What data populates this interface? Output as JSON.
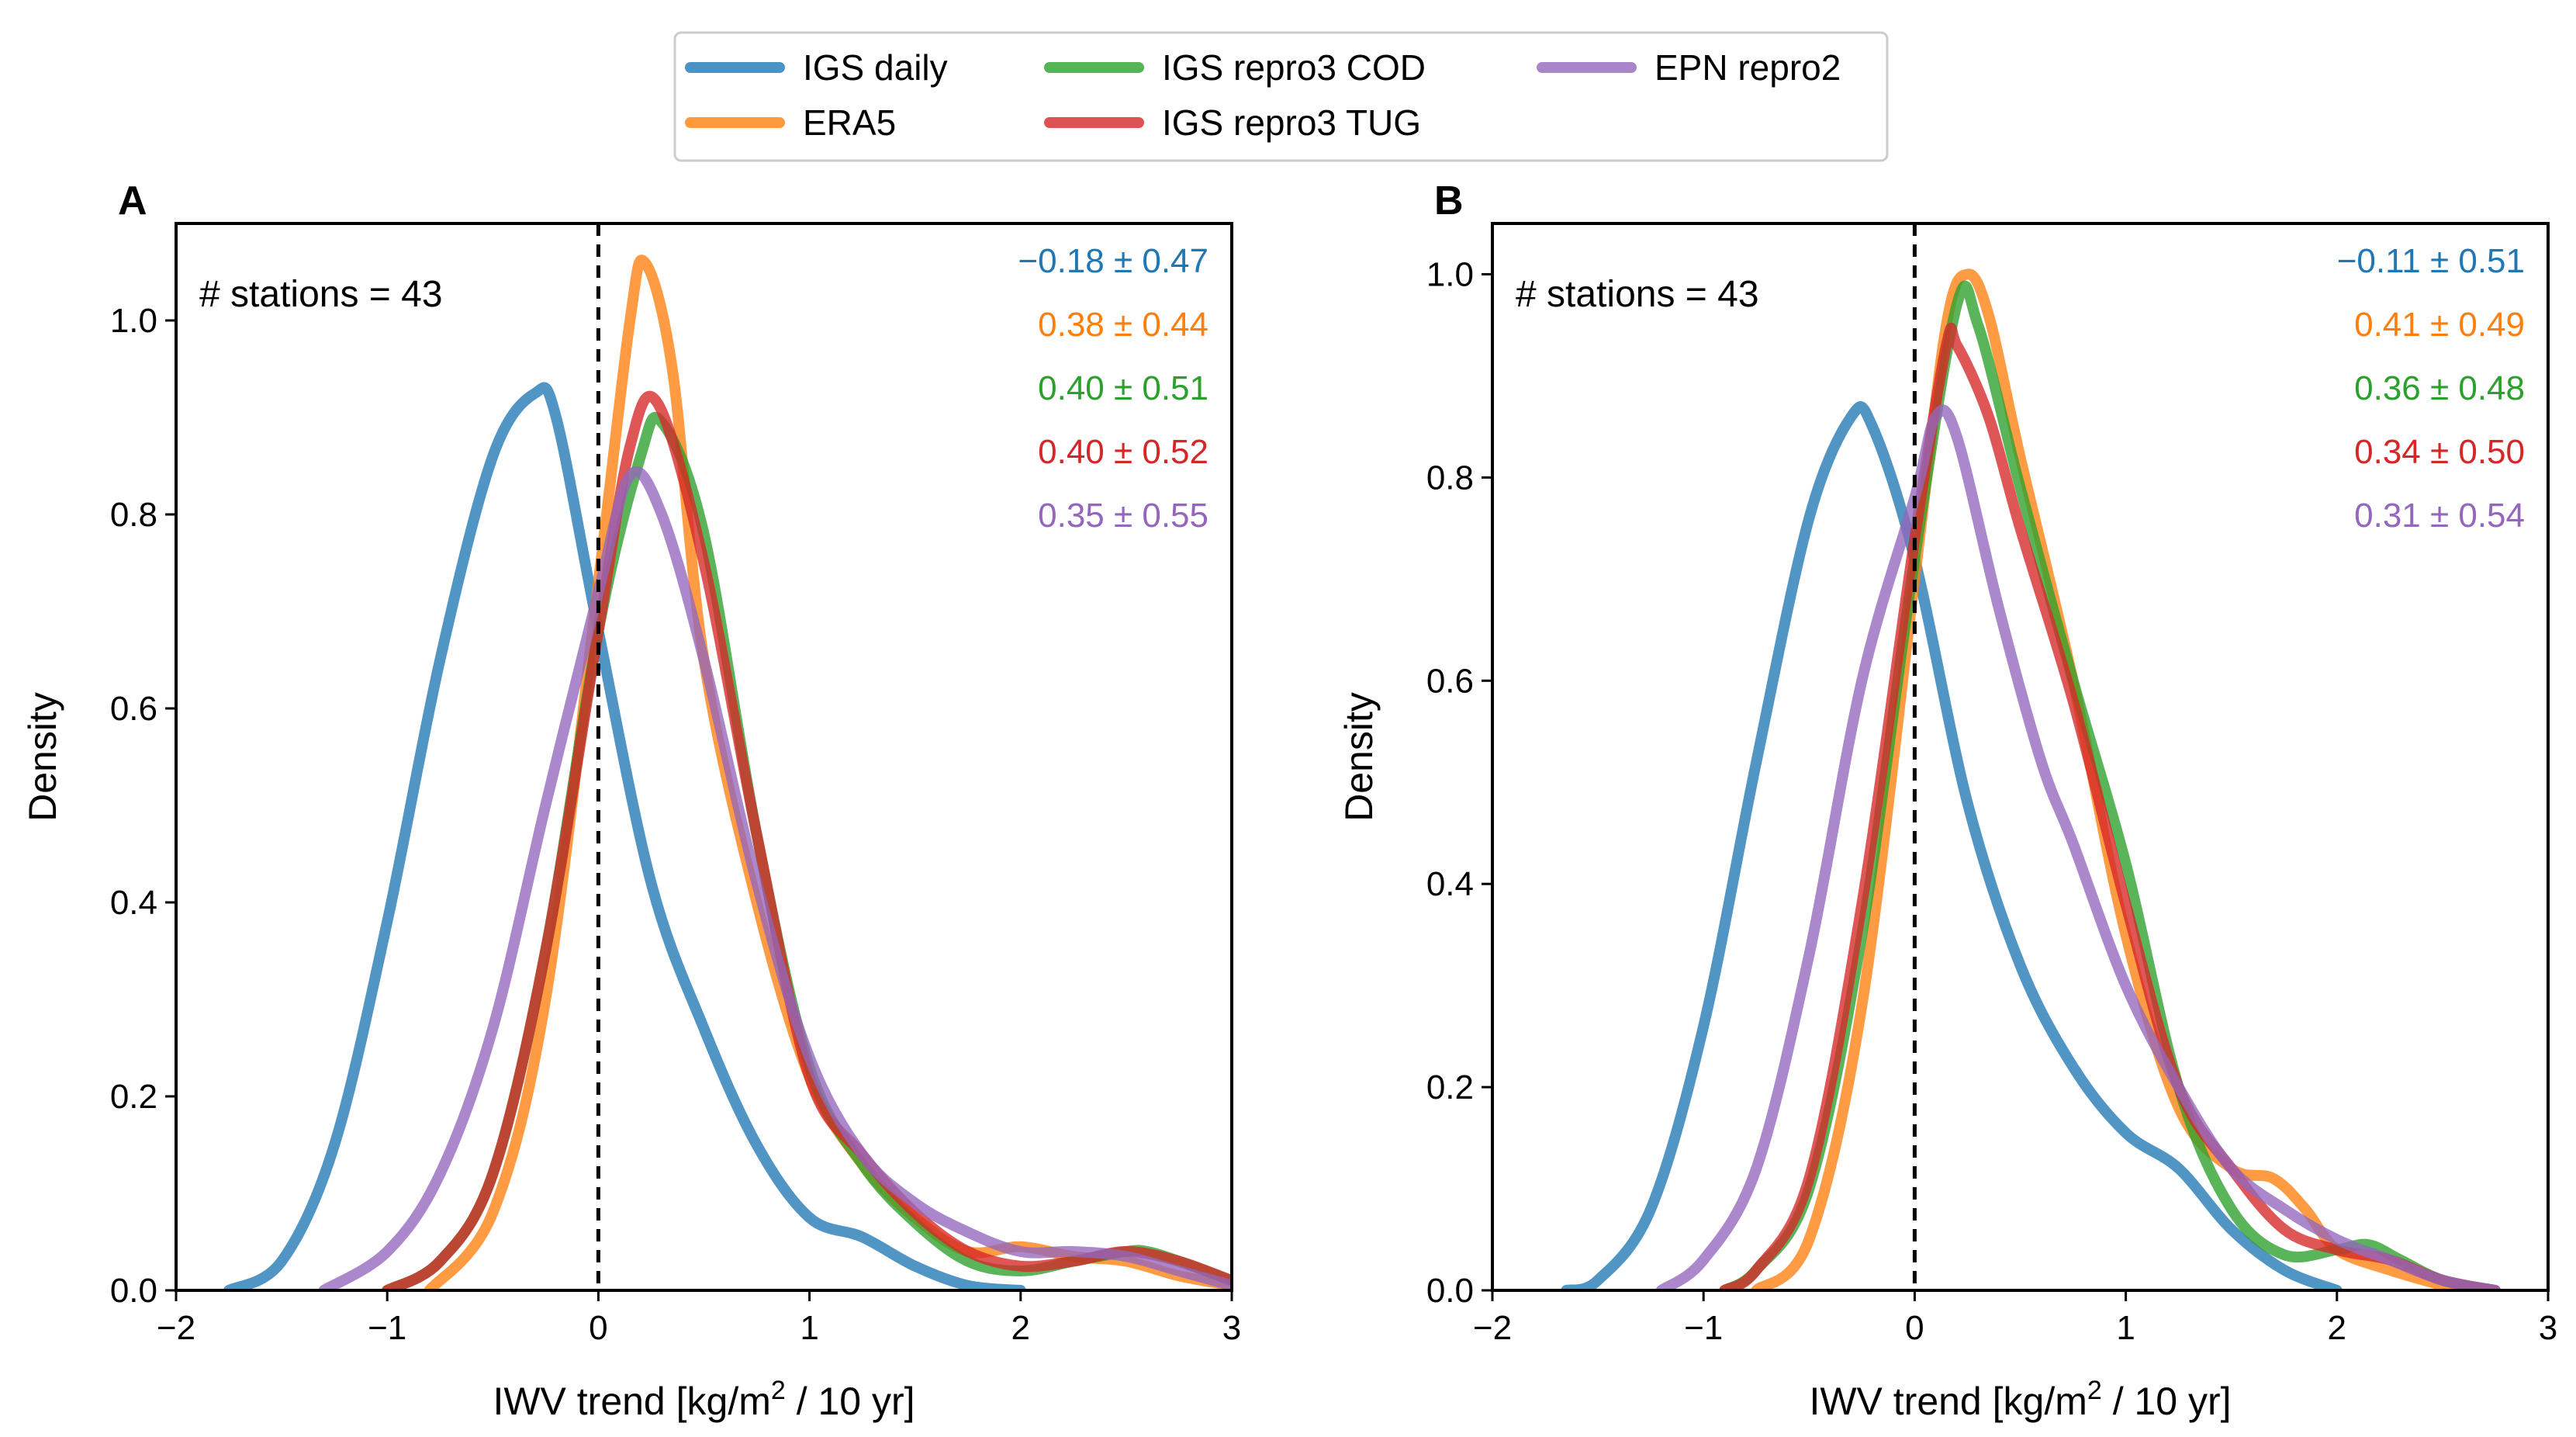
{
  "chart_data": {
    "type": "line",
    "legend": [
      {
        "name": "IGS daily",
        "color": "#1f77b4"
      },
      {
        "name": "ERA5",
        "color": "#ff7f0e"
      },
      {
        "name": "IGS repro3 COD",
        "color": "#2ca02c"
      },
      {
        "name": "IGS repro3 TUG",
        "color": "#d62728"
      },
      {
        "name": "EPN repro2",
        "color": "#9467bd"
      }
    ],
    "panels": [
      {
        "id": "A",
        "letter": "A",
        "stations_text": "# stations = 43",
        "xlabel_prefix": "IWV trend [kg/m",
        "xlabel_sup": "2",
        "xlabel_suffix": " / 10 yr]",
        "ylabel": "Density",
        "xlim": [
          -2,
          3
        ],
        "ylim": [
          0,
          1.1
        ],
        "xticks": [
          -2,
          -1,
          0,
          1,
          2,
          3
        ],
        "xtick_labels": [
          "−2",
          "−1",
          "0",
          "1",
          "2",
          "3"
        ],
        "yticks": [
          0.0,
          0.2,
          0.4,
          0.6,
          0.8,
          1.0
        ],
        "ytick_labels": [
          "0.0",
          "0.2",
          "0.4",
          "0.6",
          "0.8",
          "1.0"
        ],
        "stats": [
          {
            "text": "−0.18 ± 0.47",
            "color": "#1f77b4"
          },
          {
            "text": "0.38 ± 0.44",
            "color": "#ff7f0e"
          },
          {
            "text": "0.40 ± 0.51",
            "color": "#2ca02c"
          },
          {
            "text": "0.40 ± 0.52",
            "color": "#d62728"
          },
          {
            "text": "0.35 ± 0.55",
            "color": "#9467bd"
          }
        ],
        "series": [
          {
            "name": "IGS daily",
            "color": "#1f77b4",
            "points": [
              [
                -1.75,
                0
              ],
              [
                -1.5,
                0.03
              ],
              [
                -1.25,
                0.15
              ],
              [
                -1.0,
                0.38
              ],
              [
                -0.75,
                0.65
              ],
              [
                -0.5,
                0.86
              ],
              [
                -0.3,
                0.925
              ],
              [
                -0.2,
                0.9
              ],
              [
                0,
                0.68
              ],
              [
                0.25,
                0.42
              ],
              [
                0.5,
                0.27
              ],
              [
                0.75,
                0.15
              ],
              [
                1.0,
                0.075
              ],
              [
                1.25,
                0.055
              ],
              [
                1.5,
                0.025
              ],
              [
                1.75,
                0.005
              ],
              [
                2.0,
                0
              ]
            ]
          },
          {
            "name": "ERA5",
            "color": "#ff7f0e",
            "points": [
              [
                -0.8,
                0
              ],
              [
                -0.5,
                0.08
              ],
              [
                -0.25,
                0.3
              ],
              [
                0,
                0.73
              ],
              [
                0.15,
                1.0
              ],
              [
                0.22,
                1.06
              ],
              [
                0.35,
                0.95
              ],
              [
                0.5,
                0.65
              ],
              [
                0.75,
                0.4
              ],
              [
                1.0,
                0.22
              ],
              [
                1.25,
                0.13
              ],
              [
                1.5,
                0.075
              ],
              [
                1.75,
                0.04
              ],
              [
                2.0,
                0.045
              ],
              [
                2.25,
                0.035
              ],
              [
                2.5,
                0.03
              ],
              [
                2.75,
                0.015
              ],
              [
                3.0,
                0.005
              ]
            ]
          },
          {
            "name": "IGS repro3 COD",
            "color": "#2ca02c",
            "points": [
              [
                -1.0,
                0
              ],
              [
                -0.75,
                0.03
              ],
              [
                -0.5,
                0.12
              ],
              [
                -0.25,
                0.35
              ],
              [
                0,
                0.68
              ],
              [
                0.2,
                0.86
              ],
              [
                0.3,
                0.895
              ],
              [
                0.5,
                0.78
              ],
              [
                0.75,
                0.47
              ],
              [
                1.0,
                0.23
              ],
              [
                1.25,
                0.13
              ],
              [
                1.5,
                0.07
              ],
              [
                1.75,
                0.03
              ],
              [
                2.0,
                0.02
              ],
              [
                2.25,
                0.03
              ],
              [
                2.5,
                0.04
              ],
              [
                2.6,
                0.04
              ],
              [
                2.75,
                0.03
              ],
              [
                3.0,
                0.01
              ]
            ]
          },
          {
            "name": "IGS repro3 TUG",
            "color": "#d62728",
            "points": [
              [
                -1.0,
                0
              ],
              [
                -0.75,
                0.03
              ],
              [
                -0.5,
                0.12
              ],
              [
                -0.25,
                0.35
              ],
              [
                0,
                0.68
              ],
              [
                0.15,
                0.87
              ],
              [
                0.28,
                0.915
              ],
              [
                0.5,
                0.75
              ],
              [
                0.75,
                0.47
              ],
              [
                1.0,
                0.22
              ],
              [
                1.25,
                0.14
              ],
              [
                1.5,
                0.08
              ],
              [
                1.75,
                0.04
              ],
              [
                2.0,
                0.025
              ],
              [
                2.25,
                0.03
              ],
              [
                2.5,
                0.04
              ],
              [
                2.75,
                0.03
              ],
              [
                3.0,
                0.01
              ]
            ]
          },
          {
            "name": "EPN repro2",
            "color": "#9467bd",
            "points": [
              [
                -1.3,
                0
              ],
              [
                -1.0,
                0.04
              ],
              [
                -0.75,
                0.12
              ],
              [
                -0.5,
                0.27
              ],
              [
                -0.25,
                0.5
              ],
              [
                0,
                0.72
              ],
              [
                0.15,
                0.84
              ],
              [
                0.3,
                0.8
              ],
              [
                0.5,
                0.65
              ],
              [
                0.75,
                0.42
              ],
              [
                1.0,
                0.24
              ],
              [
                1.25,
                0.14
              ],
              [
                1.5,
                0.09
              ],
              [
                1.75,
                0.06
              ],
              [
                2.0,
                0.04
              ],
              [
                2.25,
                0.04
              ],
              [
                2.5,
                0.035
              ],
              [
                2.75,
                0.02
              ],
              [
                3.0,
                0.005
              ]
            ]
          }
        ]
      },
      {
        "id": "B",
        "letter": "B",
        "stations_text": "# stations = 43",
        "xlabel_prefix": "IWV trend [kg/m",
        "xlabel_sup": "2",
        "xlabel_suffix": " / 10 yr]",
        "ylabel": "Density",
        "xlim": [
          -2,
          3
        ],
        "ylim": [
          0,
          1.05
        ],
        "xticks": [
          -2,
          -1,
          0,
          1,
          2,
          3
        ],
        "xtick_labels": [
          "−2",
          "−1",
          "0",
          "1",
          "2",
          "3"
        ],
        "yticks": [
          0.0,
          0.2,
          0.4,
          0.6,
          0.8,
          1.0
        ],
        "ytick_labels": [
          "0.0",
          "0.2",
          "0.4",
          "0.6",
          "0.8",
          "1.0"
        ],
        "stats": [
          {
            "text": "−0.11 ± 0.51",
            "color": "#1f77b4"
          },
          {
            "text": "0.41 ± 0.49",
            "color": "#ff7f0e"
          },
          {
            "text": "0.36 ± 0.48",
            "color": "#2ca02c"
          },
          {
            "text": "0.34 ± 0.50",
            "color": "#d62728"
          },
          {
            "text": "0.31 ± 0.54",
            "color": "#9467bd"
          }
        ],
        "series": [
          {
            "name": "IGS daily",
            "color": "#1f77b4",
            "points": [
              [
                -1.65,
                0
              ],
              [
                -1.5,
                0.01
              ],
              [
                -1.25,
                0.08
              ],
              [
                -1.0,
                0.26
              ],
              [
                -0.75,
                0.52
              ],
              [
                -0.5,
                0.76
              ],
              [
                -0.3,
                0.86
              ],
              [
                -0.2,
                0.85
              ],
              [
                0,
                0.72
              ],
              [
                0.25,
                0.48
              ],
              [
                0.5,
                0.32
              ],
              [
                0.75,
                0.22
              ],
              [
                1.0,
                0.155
              ],
              [
                1.25,
                0.12
              ],
              [
                1.5,
                0.06
              ],
              [
                1.75,
                0.02
              ],
              [
                2.0,
                0
              ]
            ]
          },
          {
            "name": "ERA5",
            "color": "#ff7f0e",
            "points": [
              [
                -0.75,
                0
              ],
              [
                -0.5,
                0.05
              ],
              [
                -0.25,
                0.28
              ],
              [
                0,
                0.7
              ],
              [
                0.15,
                0.95
              ],
              [
                0.25,
                1.0
              ],
              [
                0.35,
                0.96
              ],
              [
                0.5,
                0.82
              ],
              [
                0.75,
                0.6
              ],
              [
                1.0,
                0.35
              ],
              [
                1.25,
                0.18
              ],
              [
                1.5,
                0.12
              ],
              [
                1.7,
                0.11
              ],
              [
                1.85,
                0.08
              ],
              [
                2.0,
                0.04
              ],
              [
                2.25,
                0.02
              ],
              [
                2.5,
                0.005
              ],
              [
                2.6,
                0
              ]
            ]
          },
          {
            "name": "IGS repro3 COD",
            "color": "#2ca02c",
            "points": [
              [
                -0.9,
                0
              ],
              [
                -0.75,
                0.02
              ],
              [
                -0.5,
                0.1
              ],
              [
                -0.25,
                0.35
              ],
              [
                0,
                0.72
              ],
              [
                0.2,
                0.97
              ],
              [
                0.3,
                0.95
              ],
              [
                0.5,
                0.79
              ],
              [
                0.75,
                0.6
              ],
              [
                1.0,
                0.42
              ],
              [
                1.25,
                0.2
              ],
              [
                1.5,
                0.08
              ],
              [
                1.75,
                0.035
              ],
              [
                2.0,
                0.04
              ],
              [
                2.15,
                0.045
              ],
              [
                2.3,
                0.03
              ],
              [
                2.5,
                0.01
              ],
              [
                2.75,
                0
              ]
            ]
          },
          {
            "name": "IGS repro3 TUG",
            "color": "#d62728",
            "points": [
              [
                -0.9,
                0
              ],
              [
                -0.75,
                0.02
              ],
              [
                -0.5,
                0.11
              ],
              [
                -0.25,
                0.38
              ],
              [
                0,
                0.74
              ],
              [
                0.15,
                0.93
              ],
              [
                0.2,
                0.93
              ],
              [
                0.35,
                0.86
              ],
              [
                0.5,
                0.75
              ],
              [
                0.75,
                0.58
              ],
              [
                1.0,
                0.38
              ],
              [
                1.25,
                0.2
              ],
              [
                1.5,
                0.12
              ],
              [
                1.75,
                0.06
              ],
              [
                2.0,
                0.04
              ],
              [
                2.25,
                0.03
              ],
              [
                2.5,
                0.01
              ],
              [
                2.75,
                0
              ]
            ]
          },
          {
            "name": "EPN repro2",
            "color": "#9467bd",
            "points": [
              [
                -1.2,
                0
              ],
              [
                -1.0,
                0.03
              ],
              [
                -0.75,
                0.12
              ],
              [
                -0.5,
                0.33
              ],
              [
                -0.25,
                0.6
              ],
              [
                0,
                0.78
              ],
              [
                0.1,
                0.86
              ],
              [
                0.2,
                0.84
              ],
              [
                0.4,
                0.67
              ],
              [
                0.6,
                0.52
              ],
              [
                0.75,
                0.44
              ],
              [
                1.0,
                0.3
              ],
              [
                1.25,
                0.2
              ],
              [
                1.5,
                0.12
              ],
              [
                1.75,
                0.08
              ],
              [
                2.0,
                0.05
              ],
              [
                2.25,
                0.03
              ],
              [
                2.5,
                0.01
              ],
              [
                2.75,
                0
              ]
            ]
          }
        ]
      }
    ]
  }
}
